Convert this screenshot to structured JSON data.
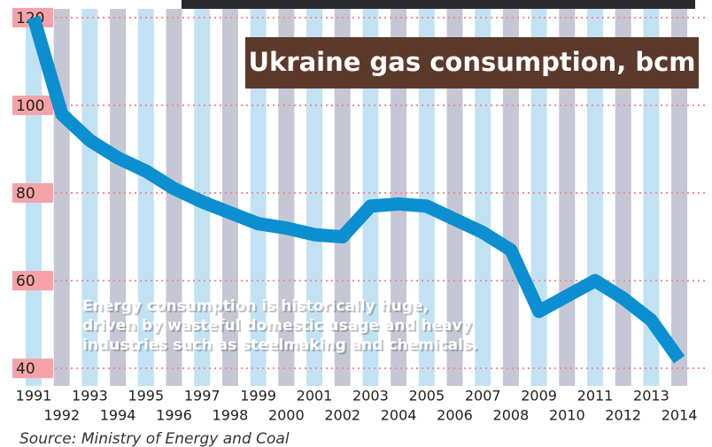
{
  "chart_data": {
    "type": "line",
    "title": "Ukraine gas consumption, bcm",
    "annotation": [
      "Energy consumption is historically huge,",
      "driven by wasteful domestic usage and heavy",
      "industries such as steelmaking and chemicals."
    ],
    "source": "Source: Ministry of Energy and Coal",
    "categories": [
      "1991",
      "1992",
      "1993",
      "1994",
      "1995",
      "1996",
      "1997",
      "1998",
      "1999",
      "2000",
      "2001",
      "2002",
      "2003",
      "2004",
      "2005",
      "2006",
      "2007",
      "2008",
      "2009",
      "2010",
      "2011",
      "2012",
      "2013",
      "2014"
    ],
    "series": [
      {
        "name": "Gas consumption",
        "color": "#0b8fd1",
        "values": [
          120,
          98,
          92,
          88,
          85,
          81,
          78,
          75.5,
          73,
          72,
          70.5,
          70,
          77,
          77.5,
          77,
          74,
          71,
          67,
          53,
          56.5,
          60,
          56,
          51,
          42
        ]
      }
    ],
    "ylim": [
      36,
      122
    ],
    "yticks": [
      40,
      60,
      80,
      100,
      120
    ],
    "grid": true
  }
}
